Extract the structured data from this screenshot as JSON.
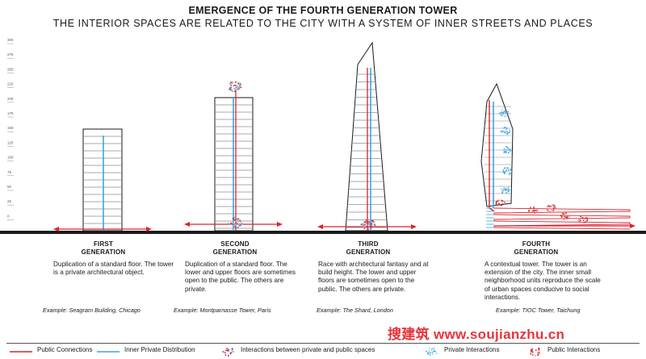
{
  "header": {
    "title": "EMERGENCE OF THE FOURTH GENERATION TOWER",
    "subtitle": "THE INTERIOR SPACES ARE RELATED TO THE CITY WITH A SYSTEM OF INNER STREETS AND PLACES"
  },
  "scale": {
    "ticks": [
      "300",
      "275",
      "250",
      "225",
      "200",
      "175",
      "150",
      "125",
      "100",
      "75",
      "50",
      "25",
      "0"
    ]
  },
  "generations": [
    {
      "name_line1": "FIRST",
      "name_line2": "GENERATION",
      "description": "Duplication of a standard floor. The tower is a private architectural object.",
      "example": "Example: Seagram Building, Chicago"
    },
    {
      "name_line1": "SECOND",
      "name_line2": "GENERATION",
      "description": "Duplication of a standard floor. The lower and upper floors are sometimes open to the public. The others are private.",
      "example": "Example: Montparnasse Tower, Paris"
    },
    {
      "name_line1": "THIRD",
      "name_line2": "GENERATION",
      "description": "Race with architectural fantasy and at build height. The lower and upper floors are sometimes open to the public. The others are private.",
      "example": "Example: The Shard, London"
    },
    {
      "name_line1": "FOURTH",
      "name_line2": "GENERATION",
      "description": "A contextual tower. The tower is an extension of the city. The inner small neighborhood units reproduce the scale of urban spaces conducive to social interactions.",
      "example": "Example: TIOC Tower, Taichung"
    }
  ],
  "legend": {
    "public_connections": "Public Connections",
    "inner_private": "Inner Private Distribution",
    "interactions_between": "Interactions between private and public spaces",
    "private_interactions": "Private Interactions",
    "public_interactions": "Public Interactions"
  },
  "watermark": {
    "chinese": "搜建筑",
    "url": "www.soujianzhu.cn"
  },
  "colors": {
    "public": "#d9232e",
    "private": "#3aa6dd",
    "structure": "#1a1a1a"
  }
}
